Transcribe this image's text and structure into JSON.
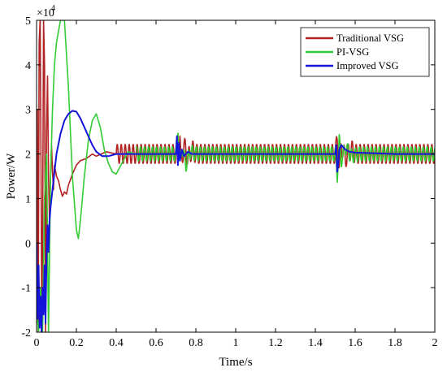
{
  "chart_data": {
    "type": "line",
    "xlabel": "Time/s",
    "ylabel": "Power/W",
    "y_multiplier_base": "×10",
    "y_multiplier_exp": "4",
    "xlim": [
      0,
      2
    ],
    "ylim": [
      -2,
      5
    ],
    "xticks": [
      0,
      0.2,
      0.4,
      0.6,
      0.8,
      1,
      1.2,
      1.4,
      1.6,
      1.8,
      2
    ],
    "xtick_labels": [
      "0",
      "0.2",
      "0.4",
      "0.6",
      "0.8",
      "1",
      "1.2",
      "1.4",
      "1.6",
      "1.8",
      "2"
    ],
    "yticks": [
      -2,
      -1,
      0,
      1,
      2,
      3,
      4,
      5
    ],
    "ytick_labels": [
      "-2",
      "-1",
      "0",
      "1",
      "2",
      "3",
      "4",
      "5"
    ],
    "grid": false,
    "legend_position": "top-right",
    "series": [
      {
        "name": "Traditional VSG",
        "color": "#b22222",
        "segments": [
          {
            "x": [
              0,
              0.004,
              0.008,
              0.013,
              0.018,
              0.022,
              0.026,
              0.03,
              0.035,
              0.04,
              0.045,
              0.05,
              0.055,
              0.06,
              0.065,
              0.07,
              0.075,
              0.08,
              0.085,
              0.09,
              0.1,
              0.11,
              0.12,
              0.13,
              0.14,
              0.15,
              0.16,
              0.18,
              0.2,
              0.22,
              0.25,
              0.28,
              0.3,
              0.35,
              0.4
            ],
            "y": [
              0,
              3,
              -2,
              4.5,
              5,
              2,
              -2,
              0,
              5,
              4,
              -2,
              2.5,
              3.75,
              1.5,
              0.5,
              1.5,
              2.2,
              1.6,
              1.2,
              1.75,
              1.5,
              1.4,
              1.2,
              1.05,
              1.15,
              1.1,
              1.3,
              1.55,
              1.75,
              1.85,
              1.9,
              2.0,
              1.95,
              2.05,
              2.0
            ]
          },
          {
            "x": [
              0.4,
              0.7,
              0.7,
              0.72,
              0.725,
              0.74,
              0.76,
              0.78,
              0.8,
              1.5,
              1.5,
              1.51,
              1.52,
              1.53,
              1.55,
              1.58,
              1.6,
              2.0
            ],
            "y": [
              2.0,
              2.0,
              2.0,
              2.4,
              1.75,
              2.2,
              1.9,
              2.1,
              2.0,
              2.0,
              2.0,
              2.3,
              1.7,
              2.2,
              1.9,
              2.1,
              2.0,
              2.0
            ],
            "ripple": 0.22
          }
        ]
      },
      {
        "name": "PI-VSG",
        "color": "#33cc33",
        "segments": [
          {
            "x": [
              0,
              0.01,
              0.02,
              0.03,
              0.04,
              0.05,
              0.06,
              0.07,
              0.08,
              0.09,
              0.1,
              0.12,
              0.14,
              0.16,
              0.18,
              0.2,
              0.21,
              0.22,
              0.24,
              0.26,
              0.28,
              0.3,
              0.32,
              0.34,
              0.36,
              0.38,
              0.4,
              0.43,
              0.46,
              0.5
            ],
            "y": [
              -1.5,
              -2,
              -1,
              -2,
              1,
              2,
              -2,
              1.5,
              3,
              4,
              4.5,
              5,
              5,
              3.5,
              1.5,
              0.3,
              0.1,
              0.5,
              1.5,
              2.3,
              2.75,
              2.9,
              2.6,
              2.1,
              1.8,
              1.6,
              1.55,
              1.8,
              2.05,
              2.0
            ]
          },
          {
            "x": [
              0.5,
              0.7,
              0.7,
              0.71,
              0.72,
              0.73,
              0.75,
              0.77,
              0.8,
              1.5,
              1.5,
              1.51,
              1.52,
              1.53,
              1.55,
              1.58,
              1.62,
              2.0
            ],
            "y": [
              2.0,
              2.0,
              2.0,
              2.6,
              1.8,
              2.15,
              1.75,
              2.05,
              2.0,
              2.0,
              2.0,
              1.5,
              2.3,
              1.85,
              2.15,
              1.95,
              2.0,
              2.0
            ],
            "ripple": 0.16
          }
        ]
      },
      {
        "name": "Improved VSG",
        "color": "#1414dc",
        "segments": [
          {
            "x": [
              0,
              0.005,
              0.01,
              0.015,
              0.02,
              0.025,
              0.03,
              0.035,
              0.04,
              0.045,
              0.05,
              0.055,
              0.06,
              0.065,
              0.07,
              0.08,
              0.09,
              0.1,
              0.12,
              0.14,
              0.16,
              0.18,
              0.2,
              0.22,
              0.24,
              0.26,
              0.28,
              0.3,
              0.33,
              0.36,
              0.4,
              0.45,
              0.5,
              0.6,
              0.7,
              0.705,
              0.71,
              0.715,
              0.72,
              0.73,
              0.74,
              0.76,
              0.78,
              0.8,
              1.0,
              1.2,
              1.4,
              1.5,
              1.505,
              1.51,
              1.515,
              1.52,
              1.53,
              1.55,
              1.57,
              1.6,
              1.8,
              2.0
            ],
            "y": [
              0,
              -1.7,
              -0.5,
              -1.9,
              -1.2,
              -2,
              -1,
              -1.6,
              -0.5,
              -1.8,
              -0.3,
              0.4,
              -0.2,
              0.5,
              0.8,
              1.2,
              1.6,
              2.0,
              2.45,
              2.75,
              2.9,
              2.97,
              2.95,
              2.8,
              2.6,
              2.4,
              2.2,
              2.05,
              1.95,
              1.95,
              2.0,
              2.0,
              2.0,
              2.0,
              2.0,
              2.4,
              1.75,
              2.25,
              1.85,
              2.1,
              1.95,
              2.05,
              2.0,
              2.0,
              2.0,
              2.0,
              2.0,
              2.0,
              2.2,
              1.6,
              1.75,
              2.1,
              2.2,
              2.1,
              2.05,
              2.03,
              2.0,
              2.0
            ]
          }
        ]
      }
    ]
  }
}
